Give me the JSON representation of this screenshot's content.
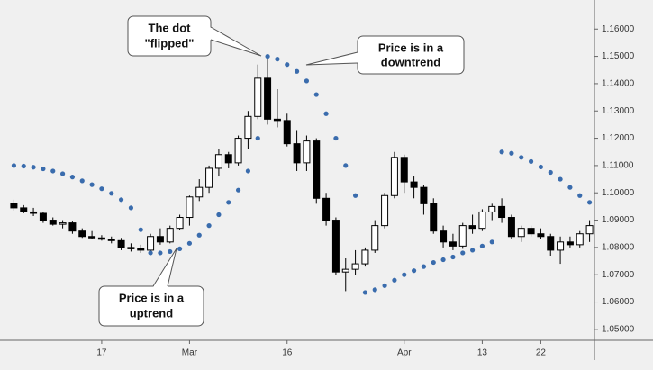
{
  "chart_data": {
    "type": "candlestick",
    "categories": [
      null,
      null,
      null,
      null,
      null,
      null,
      null,
      null,
      null,
      "17",
      null,
      null,
      null,
      null,
      null,
      null,
      null,
      null,
      "Mar",
      null,
      null,
      null,
      null,
      null,
      null,
      null,
      null,
      null,
      "16",
      null,
      null,
      null,
      null,
      null,
      null,
      null,
      null,
      null,
      null,
      null,
      "Apr",
      null,
      null,
      null,
      null,
      null,
      null,
      null,
      "13",
      null,
      null,
      null,
      null,
      null,
      "22",
      null,
      null,
      null,
      null,
      null
    ],
    "open": [
      1.096,
      1.0945,
      1.093,
      1.0925,
      1.09,
      1.0885,
      1.089,
      1.086,
      1.084,
      1.0835,
      1.083,
      1.0825,
      1.08,
      1.0795,
      1.079,
      1.084,
      1.082,
      1.087,
      1.091,
      1.0985,
      1.102,
      1.109,
      1.114,
      1.111,
      1.12,
      1.128,
      1.142,
      1.127,
      1.1265,
      1.118,
      1.111,
      1.119,
      1.098,
      1.09,
      1.071,
      1.072,
      1.074,
      1.079,
      1.088,
      1.099,
      1.113,
      1.104,
      1.102,
      1.096,
      1.086,
      1.082,
      1.0805,
      1.088,
      1.087,
      1.093,
      1.095,
      1.091,
      1.084,
      1.087,
      1.085,
      1.084,
      1.079,
      1.082,
      1.081,
      1.085
    ],
    "high": [
      1.0975,
      1.0955,
      1.0945,
      1.093,
      1.091,
      1.09,
      1.0895,
      1.087,
      1.086,
      1.0845,
      1.084,
      1.0835,
      1.0815,
      1.081,
      1.085,
      1.087,
      1.088,
      1.092,
      1.099,
      1.105,
      1.11,
      1.116,
      1.115,
      1.121,
      1.13,
      1.147,
      1.149,
      1.138,
      1.129,
      1.123,
      1.121,
      1.12,
      1.1,
      1.091,
      1.076,
      1.079,
      1.08,
      1.09,
      1.1,
      1.115,
      1.114,
      1.106,
      1.103,
      1.098,
      1.088,
      1.085,
      1.089,
      1.092,
      1.094,
      1.096,
      1.098,
      1.092,
      1.088,
      1.088,
      1.087,
      1.085,
      1.084,
      1.084,
      1.086,
      1.09
    ],
    "low": [
      1.0935,
      1.0925,
      1.0915,
      1.089,
      1.088,
      1.087,
      1.085,
      1.0835,
      1.083,
      1.0825,
      1.0815,
      1.079,
      1.0785,
      1.078,
      1.0785,
      1.081,
      1.0815,
      1.0865,
      1.088,
      1.097,
      1.1,
      1.106,
      1.109,
      1.11,
      1.116,
      1.127,
      1.125,
      1.124,
      1.117,
      1.108,
      1.108,
      1.096,
      1.088,
      1.07,
      1.064,
      1.07,
      1.073,
      1.078,
      1.087,
      1.098,
      1.1,
      1.098,
      1.092,
      1.085,
      1.08,
      1.079,
      1.0795,
      1.085,
      1.086,
      1.09,
      1.089,
      1.083,
      1.082,
      1.084,
      1.083,
      1.077,
      1.074,
      1.08,
      1.08,
      1.082
    ],
    "close": [
      1.0945,
      1.093,
      1.0925,
      1.09,
      1.0885,
      1.089,
      1.086,
      1.084,
      1.0835,
      1.083,
      1.0825,
      1.08,
      1.0795,
      1.079,
      1.084,
      1.082,
      1.087,
      1.091,
      1.0985,
      1.102,
      1.109,
      1.114,
      1.111,
      1.12,
      1.128,
      1.142,
      1.127,
      1.1265,
      1.118,
      1.111,
      1.119,
      1.098,
      1.09,
      1.071,
      1.072,
      1.074,
      1.079,
      1.088,
      1.099,
      1.113,
      1.104,
      1.102,
      1.096,
      1.086,
      1.082,
      1.0805,
      1.088,
      1.087,
      1.093,
      1.095,
      1.091,
      1.084,
      1.087,
      1.085,
      1.084,
      1.079,
      1.082,
      1.081,
      1.085,
      1.088
    ],
    "up_color": "#ffffff",
    "down_color": "#000000",
    "sar": {
      "color": "#3a6cad",
      "values": [
        1.11,
        1.1098,
        1.1094,
        1.1088,
        1.108,
        1.107,
        1.1058,
        1.1044,
        1.103,
        1.1015,
        1.0998,
        1.0975,
        1.0945,
        1.0865,
        1.078,
        1.078,
        1.0785,
        1.0795,
        1.0815,
        1.0845,
        1.088,
        1.092,
        1.0965,
        1.101,
        1.108,
        1.12,
        1.15,
        1.149,
        1.147,
        1.1445,
        1.141,
        1.136,
        1.129,
        1.12,
        1.11,
        1.099,
        1.0635,
        1.0645,
        1.066,
        1.068,
        1.07,
        1.0715,
        1.073,
        1.0745,
        1.0755,
        1.0765,
        1.078,
        1.079,
        1.0805,
        1.082,
        1.115,
        1.1145,
        1.113,
        1.1115,
        1.1095,
        1.1075,
        1.105,
        1.102,
        1.099,
        1.0965
      ]
    },
    "ylim": [
      1.046,
      1.168
    ],
    "yticks": [
      {
        "value": 1.05,
        "label": "1.05000"
      },
      {
        "value": 1.06,
        "label": "1.06000"
      },
      {
        "value": 1.07,
        "label": "1.07000"
      },
      {
        "value": 1.08,
        "label": "1.08000"
      },
      {
        "value": 1.09,
        "label": "1.09000"
      },
      {
        "value": 1.1,
        "label": "1.10000"
      },
      {
        "value": 1.11,
        "label": "1.11000"
      },
      {
        "value": 1.12,
        "label": "1.12000"
      },
      {
        "value": 1.13,
        "label": "1.13000"
      },
      {
        "value": 1.14,
        "label": "1.14000"
      },
      {
        "value": 1.15,
        "label": "1.15000"
      },
      {
        "value": 1.16,
        "label": "1.16000"
      }
    ],
    "annotations": [
      {
        "lines": [
          "The dot",
          "\"flipped\""
        ]
      },
      {
        "lines": [
          "Price is in a",
          "downtrend"
        ]
      },
      {
        "lines": [
          "Price is in a",
          "uptrend"
        ]
      }
    ]
  }
}
